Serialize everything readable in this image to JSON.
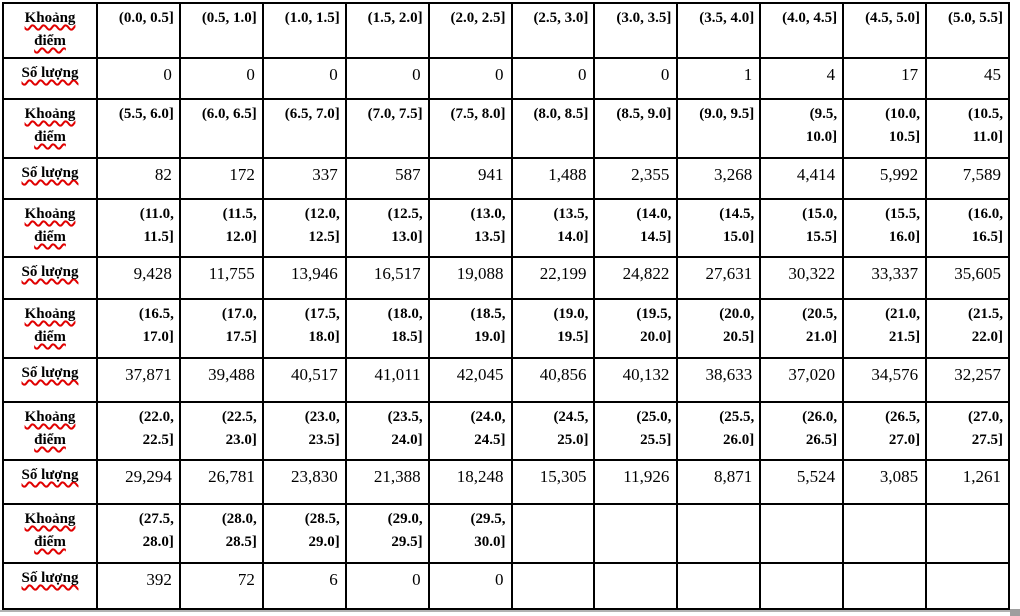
{
  "table": {
    "row_label_header": "Khoảng điểm",
    "row_label_count": "Số lượng",
    "pairs": [
      {
        "ranges": [
          "(0.0, 0.5]",
          "(0.5, 1.0]",
          "(1.0, 1.5]",
          "(1.5, 2.0]",
          "(2.0, 2.5]",
          "(2.5, 3.0]",
          "(3.0, 3.5]",
          "(3.5, 4.0]",
          "(4.0, 4.5]",
          "(4.5, 5.0]",
          "(5.0, 5.5]"
        ],
        "counts": [
          "0",
          "0",
          "0",
          "0",
          "0",
          "0",
          "0",
          "1",
          "4",
          "17",
          "45"
        ]
      },
      {
        "ranges": [
          "(5.5, 6.0]",
          "(6.0, 6.5]",
          "(6.5, 7.0]",
          "(7.0, 7.5]",
          "(7.5, 8.0]",
          "(8.0, 8.5]",
          "(8.5, 9.0]",
          "(9.0, 9.5]",
          "(9.5, 10.0]",
          "(10.0, 10.5]",
          "(10.5, 11.0]"
        ],
        "counts": [
          "82",
          "172",
          "337",
          "587",
          "941",
          "1,488",
          "2,355",
          "3,268",
          "4,414",
          "5,992",
          "7,589"
        ]
      },
      {
        "ranges": [
          "(11.0, 11.5]",
          "(11.5, 12.0]",
          "(12.0, 12.5]",
          "(12.5, 13.0]",
          "(13.0, 13.5]",
          "(13.5, 14.0]",
          "(14.0, 14.5]",
          "(14.5, 15.0]",
          "(15.0, 15.5]",
          "(15.5, 16.0]",
          "(16.0, 16.5]"
        ],
        "counts": [
          "9,428",
          "11,755",
          "13,946",
          "16,517",
          "19,088",
          "22,199",
          "24,822",
          "27,631",
          "30,322",
          "33,337",
          "35,605"
        ]
      },
      {
        "ranges": [
          "(16.5, 17.0]",
          "(17.0, 17.5]",
          "(17.5, 18.0]",
          "(18.0, 18.5]",
          "(18.5, 19.0]",
          "(19.0, 19.5]",
          "(19.5, 20.0]",
          "(20.0, 20.5]",
          "(20.5, 21.0]",
          "(21.0, 21.5]",
          "(21.5, 22.0]"
        ],
        "counts": [
          "37,871",
          "39,488",
          "40,517",
          "41,011",
          "42,045",
          "40,856",
          "40,132",
          "38,633",
          "37,020",
          "34,576",
          "32,257"
        ]
      },
      {
        "ranges": [
          "(22.0, 22.5]",
          "(22.5, 23.0]",
          "(23.0, 23.5]",
          "(23.5, 24.0]",
          "(24.0, 24.5]",
          "(24.5, 25.0]",
          "(25.0, 25.5]",
          "(25.5, 26.0]",
          "(26.0, 26.5]",
          "(26.5, 27.0]",
          "(27.0, 27.5]"
        ],
        "counts": [
          "29,294",
          "26,781",
          "23,830",
          "21,388",
          "18,248",
          "15,305",
          "11,926",
          "8,871",
          "5,524",
          "3,085",
          "1,261"
        ]
      },
      {
        "ranges": [
          "(27.5, 28.0]",
          "(28.0, 28.5]",
          "(28.5, 29.0]",
          "(29.0, 29.5]",
          "(29.5, 30.0]",
          "",
          "",
          "",
          "",
          "",
          ""
        ],
        "counts": [
          "392",
          "72",
          "6",
          "0",
          "0",
          "",
          "",
          "",
          "",
          "",
          ""
        ]
      }
    ]
  },
  "colors": {
    "border": "#000000",
    "text": "#000000",
    "spellcheck": "#e00000",
    "window_edge_line": "#b2b2b2",
    "window_edge_corner": "#9e9e9e"
  }
}
